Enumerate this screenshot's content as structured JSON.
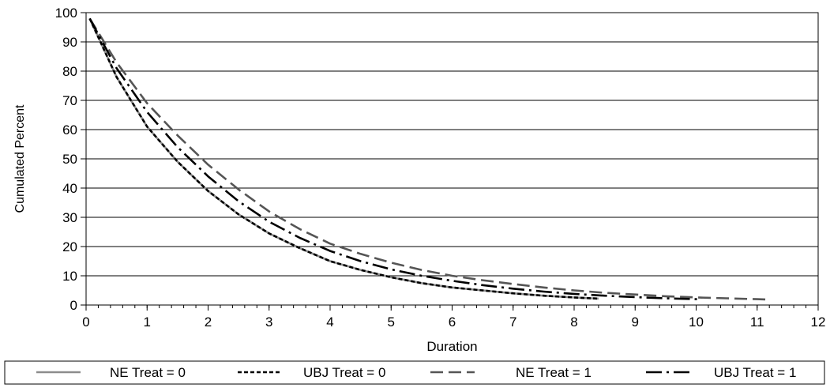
{
  "chart_data": {
    "type": "line",
    "xlabel": "Duration",
    "ylabel": "Cumulated Percent",
    "xlim": [
      0,
      12
    ],
    "ylim": [
      0,
      100
    ],
    "xticks": [
      "0",
      "1",
      "2",
      "3",
      "4",
      "5",
      "6",
      "7",
      "8",
      "9",
      "10",
      "11",
      "12"
    ],
    "yticks": [
      "0",
      "10",
      "20",
      "30",
      "40",
      "50",
      "60",
      "70",
      "80",
      "90",
      "100"
    ],
    "grid": "horizontal",
    "legend_position": "bottom",
    "series": [
      {
        "name": "NE  Treat = 0",
        "color": "#8c8c8c",
        "dash": "solid",
        "x": [
          0.06,
          0.5,
          1.0,
          1.5,
          2.0,
          2.5,
          3.0,
          3.5,
          4.0,
          4.5,
          5.0,
          5.5,
          6.0,
          6.5,
          7.0,
          7.5,
          8.0,
          8.4
        ],
        "y": [
          98,
          78,
          61,
          49,
          39,
          31,
          24.5,
          19.5,
          15,
          12,
          9.5,
          7.5,
          6,
          5,
          4,
          3.2,
          2.6,
          2.2
        ]
      },
      {
        "name": "UBJ  Treat = 0",
        "color": "#000000",
        "dash": "short",
        "x": [
          0.06,
          0.5,
          1.0,
          1.5,
          2.0,
          2.5,
          3.0,
          3.5,
          4.0,
          4.5,
          5.0,
          5.5,
          6.0,
          6.5,
          7.0,
          7.5,
          8.0,
          8.4
        ],
        "y": [
          98,
          78,
          61,
          49,
          39,
          31,
          24.5,
          19.5,
          15,
          12,
          9.5,
          7.5,
          6,
          5,
          4,
          3.2,
          2.6,
          2.2
        ]
      },
      {
        "name": "NE  Treat = 1",
        "color": "#555555",
        "dash": "long",
        "x": [
          0.06,
          0.5,
          1.0,
          1.5,
          2.0,
          2.5,
          3.0,
          3.5,
          4.0,
          4.5,
          5.0,
          5.5,
          6.0,
          6.5,
          7.0,
          7.5,
          8.0,
          8.5,
          9.0,
          9.5,
          10.0,
          10.5,
          11.0,
          11.15
        ],
        "y": [
          98,
          83,
          69,
          58,
          48,
          39.5,
          32,
          26,
          21,
          17.5,
          14.5,
          12,
          10,
          8.5,
          7.2,
          6,
          5,
          4.2,
          3.6,
          3,
          2.6,
          2.3,
          2,
          1.9
        ]
      },
      {
        "name": "UBJ  Treat = 1",
        "color": "#000000",
        "dash": "dashdot",
        "x": [
          0.06,
          0.5,
          1.0,
          1.5,
          2.0,
          2.5,
          3.0,
          3.5,
          4.0,
          4.5,
          5.0,
          5.5,
          6.0,
          6.5,
          7.0,
          7.5,
          8.0,
          8.5,
          9.0,
          9.5,
          10.0,
          10.05
        ],
        "y": [
          98,
          81,
          66,
          54,
          44,
          35.5,
          28.5,
          23,
          18.5,
          15,
          12.2,
          10,
          8.3,
          6.8,
          5.6,
          4.6,
          3.8,
          3.2,
          2.7,
          2.3,
          2,
          1.9
        ]
      }
    ]
  }
}
